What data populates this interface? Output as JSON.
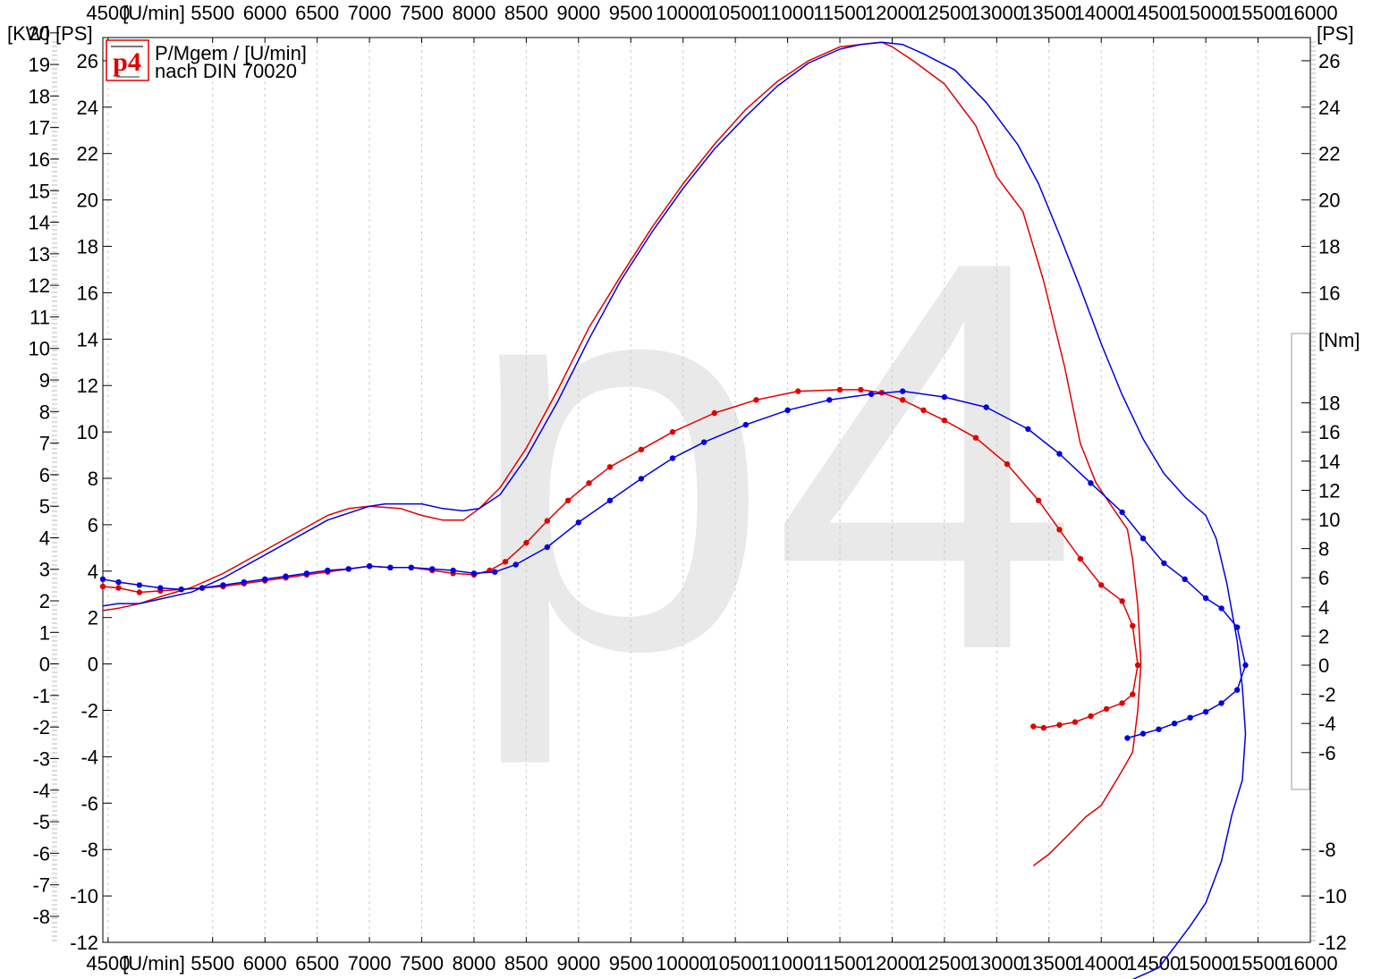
{
  "chart_data": {
    "type": "line",
    "watermark": "p4",
    "logo": "p4",
    "legend_lines": [
      "P/Mgem / [U/min]",
      "nach DIN 70020"
    ],
    "x_unit_label": "[U/min]",
    "x_ticks": [
      4500,
      5500,
      6000,
      6500,
      7000,
      7500,
      8000,
      8500,
      9000,
      9500,
      10000,
      10500,
      11000,
      11500,
      12000,
      12500,
      13000,
      13500,
      14000,
      14500,
      15000,
      15500,
      16000
    ],
    "xlim": [
      4450,
      16000
    ],
    "grid": "x-dashed",
    "axes": {
      "kw": {
        "label": "[KW]",
        "ticks": [
          20,
          19,
          18,
          17,
          16,
          15,
          14,
          13,
          12,
          11,
          10,
          9,
          8,
          7,
          6,
          5,
          4,
          3,
          2,
          1,
          0,
          -1,
          -2,
          -3,
          -4,
          -5,
          -6,
          -7,
          -8
        ]
      },
      "ps_left": {
        "label": "[PS]",
        "ticks": [
          26,
          24,
          22,
          20,
          18,
          16,
          14,
          12,
          10,
          8,
          6,
          4,
          2,
          0,
          -2,
          -4,
          -6,
          -8,
          -10,
          -12
        ],
        "range": [
          -12,
          27
        ]
      },
      "ps_right": {
        "label": "[PS]",
        "ticks": [
          26,
          24,
          22,
          20,
          18,
          16,
          -8,
          -10,
          -12
        ]
      },
      "nm": {
        "label": "[Nm]",
        "ticks": [
          18,
          16,
          14,
          12,
          10,
          8,
          6,
          4,
          2,
          0,
          -2,
          -4,
          -6
        ]
      }
    },
    "series": [
      {
        "color": "#e00000",
        "kind": "power",
        "x": [
          4450,
          4600,
          4800,
          5000,
          5300,
          5600,
          6000,
          6400,
          6600,
          6800,
          7000,
          7300,
          7500,
          7700,
          7900,
          8050,
          8250,
          8500,
          8800,
          9100,
          9400,
          9700,
          10000,
          10300,
          10600,
          10900,
          11200,
          11500,
          11700,
          11900,
          12000,
          12200,
          12500,
          12800,
          13000,
          13250,
          13450,
          13650,
          13800,
          13950,
          14100,
          14250,
          14300,
          14350,
          14380,
          14350,
          14300,
          14200,
          14000,
          13850,
          13700,
          13500,
          13350
        ],
        "y": [
          2.3,
          2.4,
          2.6,
          2.9,
          3.3,
          3.9,
          4.9,
          5.9,
          6.4,
          6.7,
          6.8,
          6.7,
          6.4,
          6.2,
          6.2,
          6.7,
          7.6,
          9.3,
          11.8,
          14.5,
          16.7,
          18.8,
          20.7,
          22.4,
          23.9,
          25.1,
          26.0,
          26.6,
          26.7,
          26.8,
          26.6,
          26.0,
          25.0,
          23.2,
          21.0,
          19.5,
          16.5,
          12.8,
          9.5,
          7.8,
          6.8,
          5.8,
          4.5,
          2.5,
          0.0,
          -2.0,
          -3.8,
          -4.6,
          -6.1,
          -6.6,
          -7.3,
          -8.2,
          -8.7
        ]
      },
      {
        "color": "#0000e0",
        "kind": "power",
        "x": [
          4450,
          4600,
          4800,
          5000,
          5300,
          5600,
          6000,
          6400,
          6600,
          6800,
          7000,
          7150,
          7300,
          7500,
          7700,
          7900,
          8050,
          8250,
          8500,
          8800,
          9100,
          9400,
          9700,
          10000,
          10300,
          10600,
          10900,
          11200,
          11500,
          11700,
          11900,
          12100,
          12300,
          12600,
          12900,
          13200,
          13400,
          13600,
          13800,
          14000,
          14200,
          14400,
          14600,
          14800,
          15000,
          15100,
          15200,
          15300,
          15350,
          15380,
          15350,
          15250,
          15150,
          15000,
          14850,
          14700,
          14550,
          14400,
          14300,
          14200
        ],
        "y": [
          2.5,
          2.6,
          2.6,
          2.8,
          3.1,
          3.7,
          4.7,
          5.7,
          6.2,
          6.5,
          6.8,
          6.9,
          6.9,
          6.9,
          6.7,
          6.6,
          6.7,
          7.3,
          8.9,
          11.3,
          14.0,
          16.5,
          18.6,
          20.5,
          22.2,
          23.6,
          24.9,
          25.9,
          26.5,
          26.7,
          26.8,
          26.7,
          26.3,
          25.6,
          24.2,
          22.4,
          20.7,
          18.5,
          16.2,
          13.8,
          11.6,
          9.7,
          8.2,
          7.2,
          6.4,
          5.4,
          3.5,
          1.0,
          -1.0,
          -3.0,
          -5.0,
          -6.5,
          -8.5,
          -10.3,
          -11.3,
          -12.2,
          -13.1,
          -13.4,
          -13.6,
          -13.7
        ]
      },
      {
        "color": "#e00000",
        "kind": "torque",
        "x": [
          4450,
          4600,
          4800,
          5000,
          5200,
          5400,
          5600,
          5800,
          6000,
          6200,
          6400,
          6600,
          6800,
          7000,
          7200,
          7400,
          7600,
          7800,
          8000,
          8150,
          8300,
          8500,
          8700,
          8900,
          9100,
          9300,
          9600,
          9900,
          10300,
          10700,
          11100,
          11500,
          11700,
          11900,
          12100,
          12300,
          12500,
          12800,
          13100,
          13400,
          13600,
          13800,
          14000,
          14200,
          14300,
          14350,
          14300,
          14200,
          14050,
          13900,
          13750,
          13600,
          13450,
          13350
        ],
        "y": [
          5.4,
          5.3,
          5.0,
          5.1,
          5.2,
          5.3,
          5.4,
          5.6,
          5.8,
          6.0,
          6.2,
          6.4,
          6.6,
          6.8,
          6.7,
          6.7,
          6.5,
          6.3,
          6.2,
          6.5,
          7.1,
          8.4,
          9.9,
          11.3,
          12.5,
          13.6,
          14.8,
          16.0,
          17.3,
          18.2,
          18.8,
          18.9,
          18.9,
          18.7,
          18.2,
          17.5,
          16.8,
          15.6,
          13.8,
          11.3,
          9.3,
          7.3,
          5.5,
          4.4,
          2.7,
          0.0,
          -2.0,
          -2.6,
          -3.0,
          -3.5,
          -3.9,
          -4.1,
          -4.3,
          -4.2
        ]
      },
      {
        "color": "#0000e0",
        "kind": "torque",
        "x": [
          4450,
          4600,
          4800,
          5000,
          5200,
          5400,
          5600,
          5800,
          6000,
          6200,
          6400,
          6600,
          6800,
          7000,
          7200,
          7400,
          7600,
          7800,
          8000,
          8200,
          8400,
          8700,
          9000,
          9300,
          9600,
          9900,
          10200,
          10600,
          11000,
          11400,
          11800,
          12100,
          12500,
          12900,
          13300,
          13600,
          13900,
          14200,
          14400,
          14600,
          14800,
          15000,
          15150,
          15300,
          15380,
          15300,
          15150,
          15000,
          14850,
          14700,
          14550,
          14400,
          14250
        ],
        "y": [
          5.9,
          5.7,
          5.5,
          5.3,
          5.2,
          5.3,
          5.5,
          5.7,
          5.9,
          6.1,
          6.3,
          6.5,
          6.6,
          6.8,
          6.7,
          6.7,
          6.6,
          6.5,
          6.3,
          6.4,
          6.9,
          8.1,
          9.8,
          11.3,
          12.8,
          14.2,
          15.3,
          16.5,
          17.5,
          18.2,
          18.6,
          18.8,
          18.4,
          17.7,
          16.2,
          14.5,
          12.5,
          10.5,
          8.7,
          7.0,
          5.9,
          4.6,
          3.9,
          2.6,
          0.0,
          -1.7,
          -2.6,
          -3.2,
          -3.6,
          -4.0,
          -4.4,
          -4.7,
          -5.0
        ]
      }
    ]
  }
}
